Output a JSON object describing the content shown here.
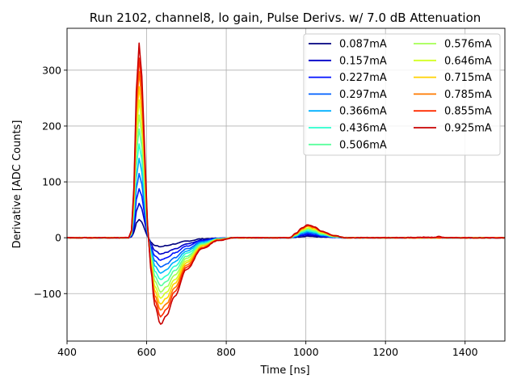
{
  "chart_data": {
    "type": "line",
    "title": "Run 2102, channel8, lo gain, Pulse Derivs. w/ 7.0 dB Attenuation",
    "xlabel": "Time [ns]",
    "ylabel": "Derivative [ADC Counts]",
    "xlim": [
      400,
      1500
    ],
    "ylim": [
      -185,
      375
    ],
    "xticks": [
      400,
      600,
      800,
      1000,
      1200,
      1400
    ],
    "yticks": [
      -100,
      0,
      100,
      200,
      300
    ],
    "ytick_labels": [
      "−100",
      "0",
      "100",
      "200",
      "300"
    ],
    "grid": true,
    "legend": {
      "placement": "upper right",
      "columns": 2
    },
    "series_shape": {
      "description_points_x": [
        400,
        555,
        562,
        568,
        574,
        581,
        588,
        595,
        602,
        610,
        620,
        635,
        650,
        670,
        700,
        740,
        780,
        820,
        960,
        975,
        990,
        1005,
        1020,
        1040,
        1070,
        1100,
        1150,
        1200,
        1320,
        1335,
        1350,
        1500
      ]
    },
    "series": [
      {
        "name": "0.087mA",
        "color": "#00007f",
        "values": [
          0,
          0,
          2,
          10,
          26,
          33,
          28,
          15,
          3,
          -7,
          -14,
          -16,
          -14,
          -11,
          -6,
          -2,
          -1,
          0,
          0,
          1,
          2,
          3,
          2,
          1,
          0.5,
          0,
          0,
          0,
          0,
          0,
          0,
          0
        ]
      },
      {
        "name": "0.157mA",
        "color": "#0000c8",
        "values": [
          0,
          0,
          3,
          17,
          47,
          62,
          52,
          28,
          5,
          -11,
          -23,
          -29,
          -26,
          -20,
          -11,
          -4,
          -1,
          0,
          0,
          2,
          4,
          5,
          4,
          2,
          1,
          0,
          0,
          0,
          0,
          0,
          0,
          0
        ]
      },
      {
        "name": "0.227mA",
        "color": "#0010ff",
        "values": [
          0,
          0,
          4,
          24,
          68,
          88,
          74,
          40,
          7,
          -15,
          -32,
          -40,
          -36,
          -27,
          -15,
          -5,
          -1,
          0,
          0,
          2,
          5,
          7,
          6,
          3,
          1,
          0,
          0,
          0,
          0,
          0,
          0,
          0
        ]
      },
      {
        "name": "0.297mA",
        "color": "#0060ff",
        "values": [
          0,
          0,
          5,
          31,
          88,
          115,
          96,
          52,
          9,
          -19,
          -41,
          -52,
          -47,
          -36,
          -20,
          -7,
          -2,
          0,
          0,
          3,
          7,
          9,
          8,
          4,
          1,
          0,
          0,
          0,
          0,
          0,
          0,
          0
        ]
      },
      {
        "name": "0.366mA",
        "color": "#00b0ff",
        "values": [
          0,
          0,
          6,
          38,
          108,
          142,
          118,
          64,
          11,
          -23,
          -50,
          -63,
          -57,
          -43,
          -24,
          -8,
          -2,
          0,
          0,
          3,
          8,
          11,
          9,
          5,
          2,
          0,
          0,
          0,
          0,
          0,
          0,
          0
        ]
      },
      {
        "name": "0.436mA",
        "color": "#29ffce",
        "values": [
          0,
          0,
          7,
          45,
          128,
          168,
          140,
          76,
          13,
          -27,
          -59,
          -75,
          -68,
          -51,
          -28,
          -10,
          -2,
          0,
          0,
          4,
          10,
          13,
          11,
          6,
          2,
          0,
          0,
          0,
          0,
          0,
          0,
          0
        ]
      },
      {
        "name": "0.506mA",
        "color": "#5aff9d",
        "values": [
          0,
          0,
          8,
          52,
          148,
          195,
          162,
          88,
          15,
          -31,
          -68,
          -86,
          -78,
          -59,
          -33,
          -11,
          -3,
          0,
          0,
          5,
          11,
          15,
          12,
          7,
          2,
          0,
          0,
          0,
          0,
          0,
          0,
          0
        ]
      },
      {
        "name": "0.576mA",
        "color": "#a4ff53",
        "values": [
          0,
          0,
          9,
          59,
          167,
          220,
          183,
          100,
          17,
          -35,
          -77,
          -97,
          -88,
          -67,
          -37,
          -13,
          -3,
          0,
          0,
          5,
          13,
          17,
          14,
          8,
          3,
          0,
          0,
          0,
          0,
          0,
          0,
          0
        ]
      },
      {
        "name": "0.646mA",
        "color": "#d4ff22",
        "values": [
          0,
          0,
          10,
          66,
          187,
          246,
          204,
          111,
          19,
          -39,
          -86,
          -108,
          -98,
          -75,
          -41,
          -14,
          -3,
          0,
          0,
          6,
          14,
          18,
          15,
          9,
          3,
          0,
          0,
          0,
          0,
          0,
          0,
          0
        ]
      },
      {
        "name": "0.715mA",
        "color": "#ffd200",
        "values": [
          0,
          0,
          11,
          72,
          205,
          270,
          225,
          122,
          21,
          -43,
          -94,
          -119,
          -108,
          -82,
          -45,
          -15,
          -4,
          0,
          0,
          6,
          15,
          20,
          17,
          10,
          3,
          0,
          0,
          0,
          0,
          0,
          0,
          0
        ]
      },
      {
        "name": "0.785mA",
        "color": "#ff7a00",
        "values": [
          0,
          0,
          12,
          78,
          223,
          297,
          246,
          134,
          23,
          -47,
          -103,
          -130,
          -118,
          -90,
          -49,
          -17,
          -4,
          0,
          0,
          7,
          16,
          21,
          18,
          11,
          4,
          0,
          0,
          0,
          0,
          0,
          0,
          0
        ]
      },
      {
        "name": "0.855mA",
        "color": "#ff2c00",
        "values": [
          0,
          0,
          13,
          85,
          242,
          322,
          267,
          145,
          25,
          -50,
          -111,
          -141,
          -128,
          -97,
          -53,
          -18,
          -4,
          0,
          0,
          7,
          17,
          22,
          19,
          11,
          4,
          0,
          0,
          0,
          0,
          0,
          0,
          0
        ]
      },
      {
        "name": "0.925mA",
        "color": "#c80000",
        "values": [
          0,
          0,
          14,
          92,
          262,
          348,
          289,
          157,
          27,
          -54,
          -120,
          -155,
          -139,
          -105,
          -57,
          -19,
          -5,
          0,
          0,
          8,
          18,
          23,
          20,
          12,
          4,
          0,
          0,
          0,
          1,
          2,
          0,
          0
        ]
      }
    ]
  }
}
